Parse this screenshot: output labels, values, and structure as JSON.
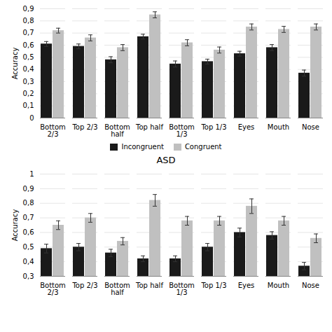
{
  "chart_data": [
    {
      "type": "bar",
      "categories": [
        "Bottom\n2/3",
        "Top 2/3",
        "Bottom\nhalf",
        "Top half",
        "Bottom\n1/3",
        "Top 1/3",
        "Eyes",
        "Mouth",
        "Nose"
      ],
      "ylabel": "Accuracy",
      "series": [
        {
          "name": "Incongruent",
          "color": "#1a1a1a",
          "values": [
            0.61,
            0.59,
            0.48,
            0.67,
            0.445,
            0.465,
            0.53,
            0.58,
            0.37
          ],
          "errors": [
            0.02,
            0.02,
            0.025,
            0.02,
            0.025,
            0.02,
            0.02,
            0.025,
            0.025
          ]
        },
        {
          "name": "Congruent",
          "color": "#c0c0c0",
          "values": [
            0.72,
            0.66,
            0.58,
            0.85,
            0.62,
            0.56,
            0.75,
            0.73,
            0.75
          ],
          "errors": [
            0.02,
            0.025,
            0.025,
            0.025,
            0.025,
            0.025,
            0.025,
            0.025,
            0.025
          ]
        }
      ],
      "ylim": [
        0,
        0.9
      ],
      "yticks": [
        0,
        {
          "value": 0.1,
          "label": "0,1"
        },
        {
          "value": 0.2,
          "label": "0,2"
        },
        {
          "value": 0.3,
          "label": "0,3"
        },
        {
          "value": 0.4,
          "label": "0,4"
        },
        {
          "value": 0.5,
          "label": "0,5"
        },
        {
          "value": 0.6,
          "label": "0,6"
        },
        {
          "value": 0.7,
          "label": "0,7"
        },
        {
          "value": 0.8,
          "label": "0,8"
        },
        {
          "value": 0.9,
          "label": "0,9"
        }
      ],
      "grid": true,
      "legend": "bottom"
    },
    {
      "type": "bar",
      "title": "ASD",
      "categories": [
        "Bottom\n2/3",
        "Top 2/3",
        "Bottom\nhalf",
        "Top half",
        "Bottom\n1/3",
        "Top 1/3",
        "Eyes",
        "Mouth",
        "Nose"
      ],
      "ylabel": "Accuracy",
      "series": [
        {
          "name": "Incongruent",
          "color": "#1a1a1a",
          "values": [
            0.49,
            0.5,
            0.46,
            0.42,
            0.42,
            0.5,
            0.6,
            0.58,
            0.37
          ],
          "errors": [
            0.03,
            0.025,
            0.025,
            0.02,
            0.02,
            0.025,
            0.03,
            0.025,
            0.025
          ]
        },
        {
          "name": "Congruent",
          "color": "#c0c0c0",
          "values": [
            0.65,
            0.7,
            0.54,
            0.82,
            0.68,
            0.68,
            0.78,
            0.68,
            0.56
          ],
          "errors": [
            0.03,
            0.03,
            0.025,
            0.04,
            0.03,
            0.03,
            0.05,
            0.03,
            0.03
          ]
        }
      ],
      "ylim": [
        0.3,
        1.0
      ],
      "yticks": [
        {
          "value": 0.3,
          "label": "0,3"
        },
        {
          "value": 0.4,
          "label": "0,4"
        },
        {
          "value": 0.5,
          "label": "0,5"
        },
        {
          "value": 0.6,
          "label": "0,6"
        },
        {
          "value": 0.7,
          "label": "0,7"
        },
        {
          "value": 0.8,
          "label": "0,8"
        },
        {
          "value": 0.9,
          "label": "0,9"
        },
        1
      ],
      "grid": true
    }
  ]
}
